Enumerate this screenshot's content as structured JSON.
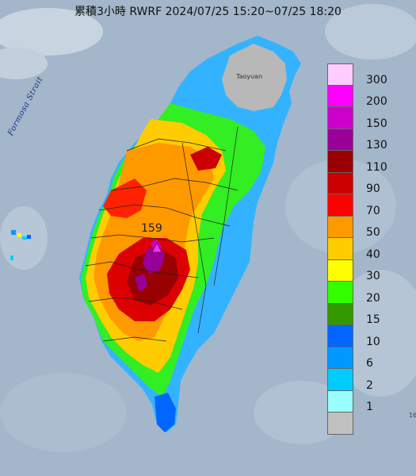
{
  "title": "累積3小時 RWRF 2024/07/25 15:20~07/25 18:20",
  "labels": {
    "strait": "Formosa Strait",
    "city": "Taoyuan",
    "peak": "159"
  },
  "legend": {
    "steps": [
      {
        "label": "300",
        "color": "#ffccff"
      },
      {
        "label": "200",
        "color": "#ff00ff"
      },
      {
        "label": "150",
        "color": "#cc00cc"
      },
      {
        "label": "130",
        "color": "#990099"
      },
      {
        "label": "110",
        "color": "#990000"
      },
      {
        "label": "90",
        "color": "#cc0000"
      },
      {
        "label": "70",
        "color": "#ff0000"
      },
      {
        "label": "50",
        "color": "#ff9900"
      },
      {
        "label": "40",
        "color": "#ffcc00"
      },
      {
        "label": "30",
        "color": "#ffff00"
      },
      {
        "label": "20",
        "color": "#33ff00"
      },
      {
        "label": "15",
        "color": "#339900"
      },
      {
        "label": "10",
        "color": "#0066ff"
      },
      {
        "label": "6",
        "color": "#0099ff"
      },
      {
        "label": "2",
        "color": "#00ccff"
      },
      {
        "label": "1",
        "color": "#99ffff"
      },
      {
        "label": "",
        "color": "#c0c0c0"
      }
    ]
  },
  "colors": {
    "sea": "#9fb2c6",
    "cloud": "#dfe6ee"
  },
  "edge_number": "16"
}
